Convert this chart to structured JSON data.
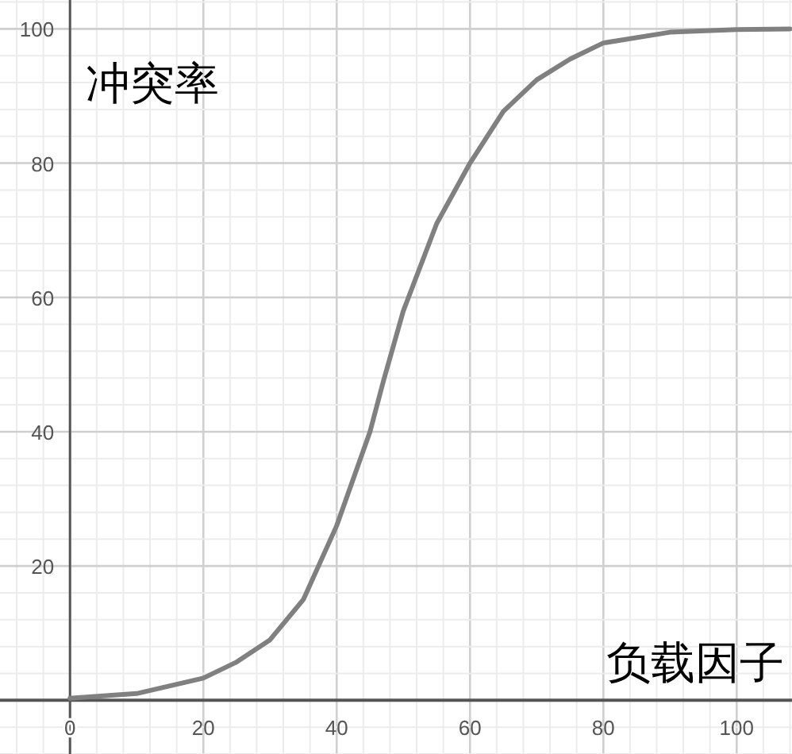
{
  "chart_data": {
    "type": "line",
    "xlabel": "负载因子",
    "ylabel": "冲突率",
    "x": [
      0,
      10,
      20,
      25,
      30,
      35,
      40,
      45,
      47,
      50,
      55,
      60,
      65,
      70,
      75,
      80,
      90,
      100,
      108
    ],
    "series": [
      {
        "color": "#808080",
        "values": [
          0.3,
          1,
          3.3,
          5.7,
          9,
          15,
          26,
          40,
          47.5,
          58,
          71,
          80,
          87.7,
          92.4,
          95.5,
          97.9,
          99.5,
          99.9,
          100
        ]
      }
    ],
    "xlim": [
      -10.5,
      108.3
    ],
    "ylim": [
      -8,
      104.3
    ],
    "xticks": [
      0,
      20,
      40,
      60,
      80,
      100
    ],
    "yticks": [
      20,
      40,
      60,
      80,
      100
    ],
    "grid": true,
    "marker": "none",
    "line_style": "solid"
  }
}
